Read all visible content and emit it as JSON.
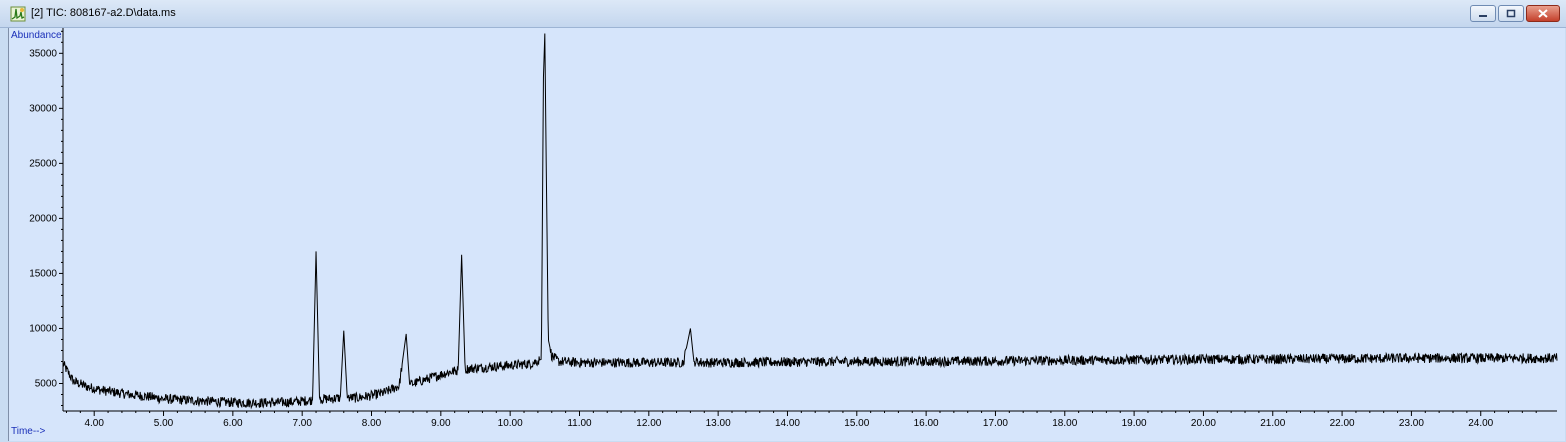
{
  "window": {
    "title": "[2] TIC: 808167-a2.D\\data.ms",
    "colors": {
      "plot_bg": "#d6e5fb",
      "trace": "#000000",
      "axis_label": "#1a2fb8"
    },
    "icons": [
      "chromatogram-app-icon",
      "minimize-icon",
      "maximize-icon",
      "close-icon"
    ]
  },
  "chart_data": {
    "type": "line",
    "ylabel": "Abundance",
    "xlabel": "Time-->",
    "xlim": [
      3.55,
      25.1
    ],
    "ylim": [
      2500,
      37300
    ],
    "y_ticks": [
      5000,
      10000,
      15000,
      20000,
      25000,
      30000,
      35000
    ],
    "y_tick_labels": [
      "5000",
      "10000",
      "15000",
      "20000",
      "25000",
      "30000",
      "35000"
    ],
    "x_ticks": [
      4,
      5,
      6,
      7,
      8,
      9,
      10,
      11,
      12,
      13,
      14,
      15,
      16,
      17,
      18,
      19,
      20,
      21,
      22,
      23,
      24
    ],
    "x_tick_labels": [
      "4.00",
      "5.00",
      "6.00",
      "7.00",
      "8.00",
      "9.00",
      "10.00",
      "11.00",
      "12.00",
      "13.00",
      "14.00",
      "15.00",
      "16.00",
      "17.00",
      "18.00",
      "19.00",
      "20.00",
      "21.00",
      "22.00",
      "23.00",
      "24.00"
    ],
    "series": [
      {
        "color": "#000000",
        "x": [
          3.55,
          3.7,
          3.9,
          4.1,
          4.3,
          4.5,
          4.8,
          5.0,
          5.3,
          5.6,
          5.9,
          6.2,
          6.5,
          6.8,
          7.0,
          7.15,
          7.2,
          7.25,
          7.4,
          7.55,
          7.6,
          7.65,
          7.8,
          8.0,
          8.2,
          8.4,
          8.5,
          8.55,
          8.7,
          8.9,
          9.1,
          9.25,
          9.3,
          9.35,
          9.5,
          9.7,
          9.9,
          10.1,
          10.3,
          10.45,
          10.48,
          10.5,
          10.52,
          10.55,
          10.6,
          10.7,
          11.0,
          11.5,
          12.0,
          12.5,
          12.6,
          12.65,
          12.8,
          13.0,
          14.0,
          15.0,
          16.0,
          17.0,
          18.0,
          19.0,
          20.0,
          21.0,
          22.0,
          23.0,
          24.0,
          25.0
        ],
        "y": [
          6800,
          5200,
          4700,
          4400,
          4200,
          4000,
          3800,
          3600,
          3500,
          3400,
          3300,
          3250,
          3250,
          3300,
          3400,
          3500,
          17000,
          3600,
          3600,
          3700,
          9800,
          3700,
          3700,
          3900,
          4200,
          4800,
          9500,
          4900,
          5200,
          5600,
          6000,
          6200,
          16700,
          6300,
          6400,
          6500,
          6600,
          6700,
          6800,
          7200,
          32800,
          36800,
          25000,
          9000,
          7500,
          7000,
          6900,
          6900,
          6900,
          6900,
          10000,
          7000,
          6900,
          6900,
          6950,
          7000,
          7000,
          7050,
          7100,
          7150,
          7200,
          7200,
          7250,
          7300,
          7300,
          7300
        ]
      }
    ]
  }
}
